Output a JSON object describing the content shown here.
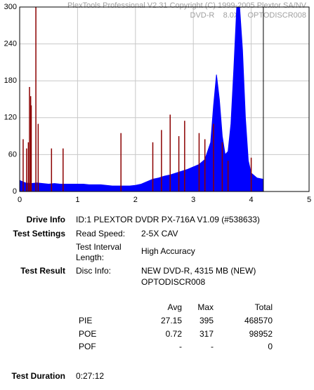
{
  "chart_data": {
    "type": "area-spikes",
    "header": [
      "PlexTools Professional V2.31 Copyright (C) 1999-2005 Plextor SA/NV",
      "DVD-R    8.0X    OPTODISCR008"
    ],
    "xlim": [
      0,
      5
    ],
    "xticks": [
      0,
      1,
      2,
      3,
      4,
      5
    ],
    "ylim": [
      0,
      300
    ],
    "yticks": [
      0,
      60,
      120,
      180,
      240,
      300
    ],
    "grid": true,
    "disc_end": 4.21,
    "series": [
      {
        "color": "#0000ff",
        "x": [
          0,
          0.1,
          0.2,
          0.3,
          0.4,
          0.5,
          0.6,
          0.7,
          0.8,
          0.9,
          1.0,
          1.1,
          1.2,
          1.3,
          1.4,
          1.5,
          1.6,
          1.7,
          1.8,
          1.9,
          2.0,
          2.1,
          2.2,
          2.3,
          2.4,
          2.5,
          2.6,
          2.7,
          2.8,
          2.9,
          3.0,
          3.1,
          3.2,
          3.3,
          3.35,
          3.4,
          3.45,
          3.5,
          3.55,
          3.6,
          3.65,
          3.7,
          3.75,
          3.8,
          3.85,
          3.9,
          3.95,
          4.0,
          4.1,
          4.2
        ],
        "values": [
          18,
          14,
          13,
          14,
          13,
          12,
          13,
          12,
          12,
          12,
          12,
          12,
          11,
          11,
          11,
          10,
          9,
          9,
          9,
          9,
          10,
          12,
          16,
          20,
          22,
          25,
          27,
          30,
          33,
          36,
          40,
          44,
          52,
          80,
          140,
          190,
          150,
          90,
          60,
          65,
          110,
          200,
          300,
          300,
          230,
          120,
          50,
          30,
          22,
          20
        ]
      },
      {
        "color": "#8b0000",
        "x": [
          0.06,
          0.12,
          0.15,
          0.17,
          0.19,
          0.2,
          0.28,
          0.32,
          0.55,
          0.75,
          1.75,
          2.3,
          2.45,
          2.6,
          2.75,
          2.85,
          3.1,
          3.2,
          3.35,
          3.5,
          3.6,
          4.0
        ],
        "values": [
          85,
          70,
          80,
          170,
          155,
          140,
          300,
          110,
          70,
          70,
          95,
          80,
          100,
          125,
          90,
          115,
          95,
          85,
          110,
          80,
          50,
          55
        ]
      }
    ]
  },
  "info": {
    "drive_info": {
      "label": "Drive Info",
      "value": "ID:1 PLEXTOR DVDR PX-716A V1.09 (#538633)"
    },
    "test_settings": {
      "label": "Test Settings",
      "read_speed_label": "Read Speed:",
      "read_speed": "2-5X CAV",
      "interval_label": "Test Interval Length:",
      "interval": "High Accuracy"
    },
    "test_result": {
      "label": "Test Result",
      "disc_info_label": "Disc Info:",
      "disc_info": [
        "NEW DVD-R, 4315 MB (NEW)",
        "OPTODISCR008"
      ]
    },
    "results": {
      "columns": [
        "Avg",
        "Max",
        "Total"
      ],
      "rows": [
        [
          "PIE",
          "27.15",
          "395",
          "468570"
        ],
        [
          "POE",
          "0.72",
          "317",
          "98952"
        ],
        [
          "POF",
          "-",
          "-",
          "0"
        ]
      ]
    },
    "test_duration": {
      "label": "Test Duration",
      "value": "0:27:12"
    }
  }
}
